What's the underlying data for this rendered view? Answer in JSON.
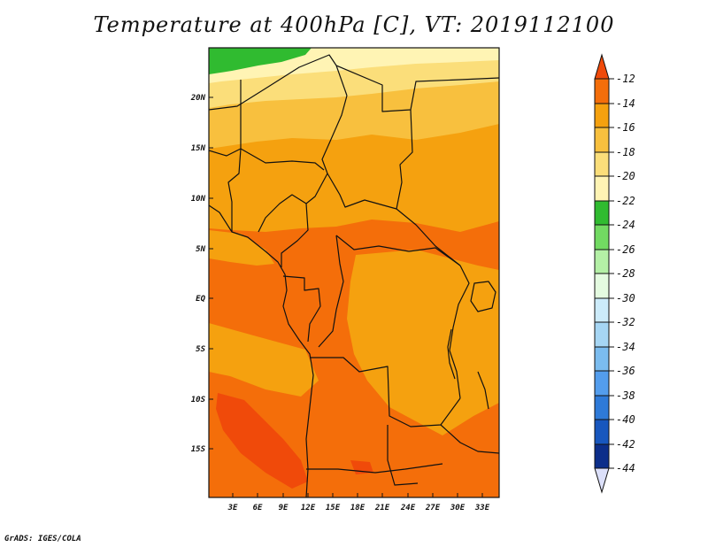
{
  "title": "Temperature at 400hPa [C], VT: 2019112100",
  "footer": "GrADS: IGES/COLA",
  "map": {
    "lat_labels": [
      "20N",
      "15N",
      "10N",
      "5N",
      "EQ",
      "5S",
      "10S",
      "15S"
    ],
    "lon_labels": [
      "3E",
      "6E",
      "9E",
      "12E",
      "15E",
      "18E",
      "21E",
      "24E",
      "27E",
      "30E",
      "33E"
    ]
  },
  "colorbar": {
    "levels": [
      "-12",
      "-14",
      "-16",
      "-18",
      "-20",
      "-22",
      "-24",
      "-26",
      "-28",
      "-30",
      "-32",
      "-34",
      "-36",
      "-38",
      "-40",
      "-42",
      "-44"
    ],
    "colors": [
      "#f04a0a",
      "#f46e0a",
      "#f5a10f",
      "#f8c03e",
      "#fbde7a",
      "#fff4b4",
      "#30bb30",
      "#72da62",
      "#b4f0a6",
      "#e4fbe0",
      "#ccebfa",
      "#a6d6f4",
      "#7bbcef",
      "#539ded",
      "#2e7ad8",
      "#1857be",
      "#0c2e8a",
      "#0a0a62",
      "#dce0fa"
    ]
  },
  "field_colors": {
    "t_m12": "#f04a0a",
    "t_m14": "#f46e0a",
    "t_m16": "#f5a10f",
    "t_m18": "#f8c03e",
    "t_m20": "#fbde7a",
    "t_m22": "#fff4b4",
    "t_m24": "#30bb30"
  }
}
